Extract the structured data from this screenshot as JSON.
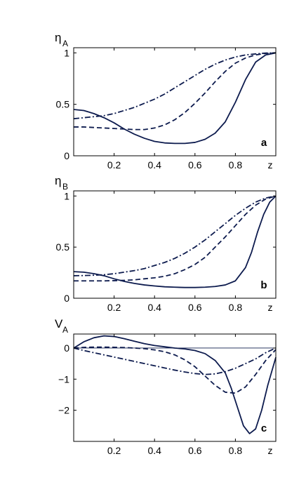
{
  "chart_data": [
    {
      "type": "line",
      "panel_label": "a",
      "ylabel": {
        "symbol": "η",
        "subscript": "A"
      },
      "xlabel": "z",
      "xlim": [
        0,
        1
      ],
      "ylim": [
        0,
        1.05
      ],
      "xticks": [
        0.2,
        0.4,
        0.6,
        0.8
      ],
      "xtick_labels": [
        "0.2",
        "0.4",
        "0.6",
        "0.8"
      ],
      "yticks": [
        0,
        0.5,
        1
      ],
      "ytick_labels": [
        "0",
        "0.5",
        "1"
      ],
      "zero_line": false,
      "series": [
        {
          "style": "solid",
          "color": "#0d1b4e",
          "x": [
            0,
            0.05,
            0.1,
            0.15,
            0.2,
            0.25,
            0.3,
            0.35,
            0.4,
            0.45,
            0.5,
            0.55,
            0.6,
            0.65,
            0.7,
            0.75,
            0.8,
            0.85,
            0.9,
            0.95,
            1.0
          ],
          "y": [
            0.45,
            0.44,
            0.41,
            0.37,
            0.32,
            0.26,
            0.21,
            0.17,
            0.14,
            0.125,
            0.12,
            0.12,
            0.13,
            0.16,
            0.22,
            0.33,
            0.52,
            0.74,
            0.91,
            0.98,
            1.0
          ]
        },
        {
          "style": "dashed",
          "color": "#0d1b4e",
          "x": [
            0,
            0.05,
            0.1,
            0.15,
            0.2,
            0.25,
            0.3,
            0.35,
            0.4,
            0.45,
            0.5,
            0.55,
            0.6,
            0.65,
            0.7,
            0.75,
            0.8,
            0.85,
            0.9,
            0.95,
            1.0
          ],
          "y": [
            0.28,
            0.28,
            0.275,
            0.27,
            0.265,
            0.26,
            0.255,
            0.255,
            0.27,
            0.3,
            0.35,
            0.42,
            0.51,
            0.61,
            0.72,
            0.82,
            0.9,
            0.95,
            0.98,
            0.995,
            1.0
          ]
        },
        {
          "style": "dashdot",
          "color": "#0d1b4e",
          "x": [
            0,
            0.05,
            0.1,
            0.15,
            0.2,
            0.25,
            0.3,
            0.35,
            0.4,
            0.45,
            0.5,
            0.55,
            0.6,
            0.65,
            0.7,
            0.75,
            0.8,
            0.85,
            0.9,
            0.95,
            1.0
          ],
          "y": [
            0.36,
            0.37,
            0.38,
            0.39,
            0.41,
            0.44,
            0.47,
            0.51,
            0.55,
            0.6,
            0.66,
            0.72,
            0.78,
            0.84,
            0.89,
            0.93,
            0.96,
            0.98,
            0.99,
            0.998,
            1.0
          ]
        }
      ]
    },
    {
      "type": "line",
      "panel_label": "b",
      "ylabel": {
        "symbol": "η",
        "subscript": "B"
      },
      "xlabel": "z",
      "xlim": [
        0,
        1
      ],
      "ylim": [
        0,
        1.05
      ],
      "xticks": [
        0.2,
        0.4,
        0.6,
        0.8
      ],
      "xtick_labels": [
        "0.2",
        "0.4",
        "0.6",
        "0.8"
      ],
      "yticks": [
        0,
        0.5,
        1
      ],
      "ytick_labels": [
        "0",
        "0.5",
        "1"
      ],
      "zero_line": false,
      "series": [
        {
          "style": "solid",
          "color": "#0d1b4e",
          "x": [
            0,
            0.05,
            0.1,
            0.15,
            0.2,
            0.25,
            0.3,
            0.35,
            0.4,
            0.45,
            0.5,
            0.55,
            0.6,
            0.65,
            0.7,
            0.75,
            0.8,
            0.85,
            0.88,
            0.91,
            0.94,
            0.97,
            1.0
          ],
          "y": [
            0.26,
            0.255,
            0.24,
            0.22,
            0.19,
            0.165,
            0.145,
            0.13,
            0.12,
            0.112,
            0.108,
            0.105,
            0.105,
            0.108,
            0.115,
            0.13,
            0.17,
            0.3,
            0.45,
            0.65,
            0.82,
            0.94,
            1.0
          ]
        },
        {
          "style": "dashed",
          "color": "#0d1b4e",
          "x": [
            0,
            0.05,
            0.1,
            0.15,
            0.2,
            0.25,
            0.3,
            0.35,
            0.4,
            0.45,
            0.5,
            0.55,
            0.6,
            0.65,
            0.7,
            0.75,
            0.8,
            0.85,
            0.9,
            0.95,
            1.0
          ],
          "y": [
            0.17,
            0.17,
            0.17,
            0.17,
            0.172,
            0.175,
            0.18,
            0.19,
            0.2,
            0.215,
            0.24,
            0.28,
            0.33,
            0.4,
            0.5,
            0.6,
            0.71,
            0.82,
            0.91,
            0.97,
            1.0
          ]
        },
        {
          "style": "dashdot",
          "color": "#0d1b4e",
          "x": [
            0,
            0.05,
            0.1,
            0.15,
            0.2,
            0.25,
            0.3,
            0.35,
            0.4,
            0.45,
            0.5,
            0.55,
            0.6,
            0.65,
            0.7,
            0.75,
            0.8,
            0.85,
            0.9,
            0.95,
            1.0
          ],
          "y": [
            0.22,
            0.222,
            0.225,
            0.23,
            0.24,
            0.255,
            0.27,
            0.29,
            0.32,
            0.35,
            0.39,
            0.44,
            0.5,
            0.57,
            0.65,
            0.73,
            0.81,
            0.88,
            0.94,
            0.98,
            1.0
          ]
        }
      ]
    },
    {
      "type": "line",
      "panel_label": "c",
      "ylabel": {
        "symbol": "V",
        "subscript": "A"
      },
      "xlabel": "z",
      "xlim": [
        0,
        1
      ],
      "ylim": [
        -3.0,
        0.45
      ],
      "xticks": [
        0.2,
        0.4,
        0.6,
        0.8
      ],
      "xtick_labels": [
        "0.2",
        "0.4",
        "0.6",
        "0.8"
      ],
      "yticks": [
        -2,
        -1,
        0
      ],
      "ytick_labels": [
        "−2",
        "−1",
        "0"
      ],
      "zero_line": true,
      "series": [
        {
          "style": "solid",
          "color": "#0d1b4e",
          "x": [
            0,
            0.05,
            0.1,
            0.15,
            0.2,
            0.25,
            0.3,
            0.35,
            0.4,
            0.45,
            0.5,
            0.55,
            0.6,
            0.65,
            0.7,
            0.75,
            0.78,
            0.81,
            0.84,
            0.87,
            0.9,
            0.93,
            0.96,
            1.0
          ],
          "y": [
            0.0,
            0.2,
            0.33,
            0.39,
            0.37,
            0.3,
            0.22,
            0.14,
            0.08,
            0.04,
            0.0,
            -0.03,
            -0.08,
            -0.18,
            -0.4,
            -0.8,
            -1.3,
            -1.9,
            -2.5,
            -2.75,
            -2.6,
            -2.0,
            -1.2,
            -0.3
          ]
        },
        {
          "style": "dashed",
          "color": "#0d1b4e",
          "x": [
            0,
            0.05,
            0.1,
            0.15,
            0.2,
            0.25,
            0.3,
            0.35,
            0.4,
            0.45,
            0.5,
            0.55,
            0.6,
            0.65,
            0.7,
            0.75,
            0.8,
            0.85,
            0.9,
            0.95,
            1.0
          ],
          "y": [
            0.0,
            0.02,
            0.03,
            0.03,
            0.025,
            0.015,
            0.0,
            -0.02,
            -0.06,
            -0.12,
            -0.22,
            -0.38,
            -0.6,
            -0.9,
            -1.2,
            -1.42,
            -1.45,
            -1.25,
            -0.85,
            -0.4,
            -0.05
          ]
        },
        {
          "style": "dashdot",
          "color": "#0d1b4e",
          "x": [
            0,
            0.05,
            0.1,
            0.15,
            0.2,
            0.25,
            0.3,
            0.35,
            0.4,
            0.45,
            0.5,
            0.55,
            0.6,
            0.65,
            0.7,
            0.75,
            0.8,
            0.85,
            0.9,
            0.95,
            1.0
          ],
          "y": [
            0.0,
            -0.08,
            -0.15,
            -0.22,
            -0.29,
            -0.36,
            -0.43,
            -0.5,
            -0.57,
            -0.64,
            -0.71,
            -0.77,
            -0.82,
            -0.85,
            -0.83,
            -0.76,
            -0.65,
            -0.5,
            -0.35,
            -0.15,
            0.0
          ]
        }
      ]
    }
  ]
}
